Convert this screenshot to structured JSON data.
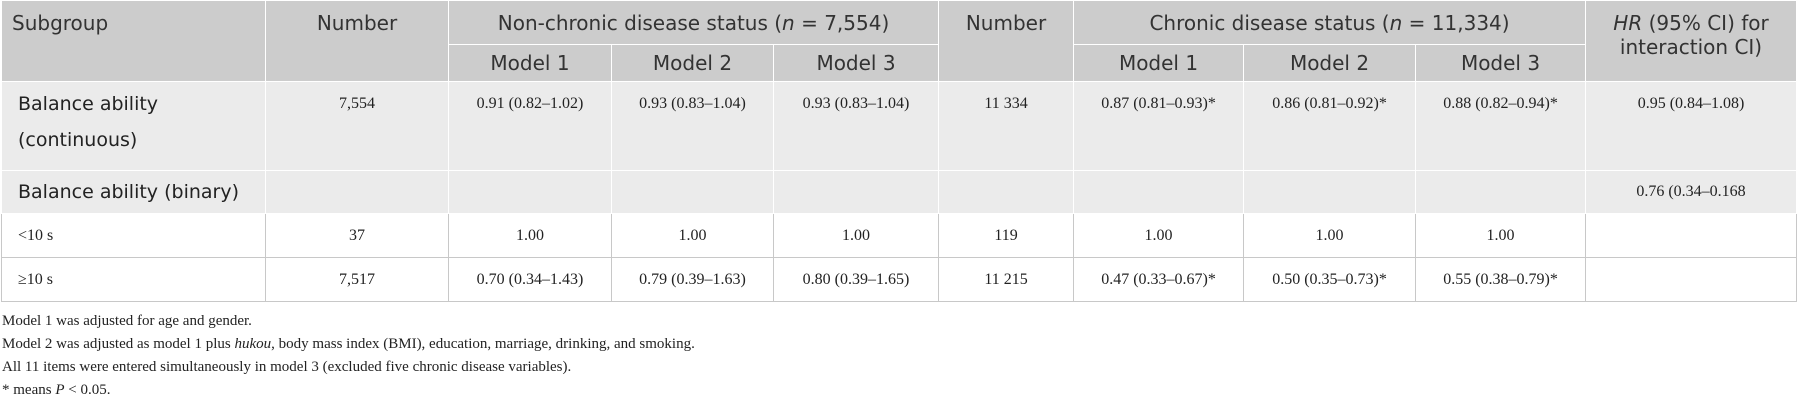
{
  "table": {
    "header": {
      "subgroup": "Subgroup",
      "number_a": "Number",
      "non_chronic": [
        "Non-chronic disease status (",
        "n",
        " = 7,554)"
      ],
      "number_b": "Number",
      "chronic": [
        "Chronic disease status (",
        "n",
        " = 11,334)"
      ],
      "hr": [
        "HR",
        " (95% CI) for interaction CI)"
      ],
      "models": [
        "Model 1",
        "Model 2",
        "Model 3",
        "Model 1",
        "Model 2",
        "Model 3"
      ]
    },
    "rows": [
      [
        "Balance ability (continuous)",
        "7,554",
        "0.91 (0.82–1.02)",
        "0.93 (0.83–1.04)",
        "0.93 (0.83–1.04)",
        "11 334",
        "0.87 (0.81–0.93)*",
        "0.86 (0.81–0.92)*",
        "0.88 (0.82–0.94)*",
        "0.95 (0.84–1.08)"
      ],
      [
        "Balance ability (binary)",
        null,
        null,
        null,
        null,
        null,
        null,
        null,
        null,
        "0.76 (0.34–0.168"
      ],
      [
        "<10 s",
        "37",
        "1.00",
        "1.00",
        "1.00",
        "119",
        "1.00",
        "1.00",
        "1.00",
        null
      ],
      [
        "≥10 s",
        "7,517",
        "0.70 (0.34–1.43)",
        "0.79 (0.39–1.63)",
        "0.80 (0.39–1.65)",
        "11 215",
        "0.47 (0.33–0.67)*",
        "0.50 (0.35–0.73)*",
        "0.55 (0.38–0.79)*",
        null
      ]
    ]
  },
  "notes": [
    [
      "Model 1 was adjusted for age and gender."
    ],
    [
      "Model 2 was adjusted as model 1 plus ",
      "hukou",
      ", body mass index (BMI), education, marriage, drinking, and smoking."
    ],
    [
      "All 11 items were entered simultaneously in model 3 (excluded five chronic disease variables)."
    ],
    [
      "* means ",
      "P",
      " < 0.05."
    ]
  ]
}
